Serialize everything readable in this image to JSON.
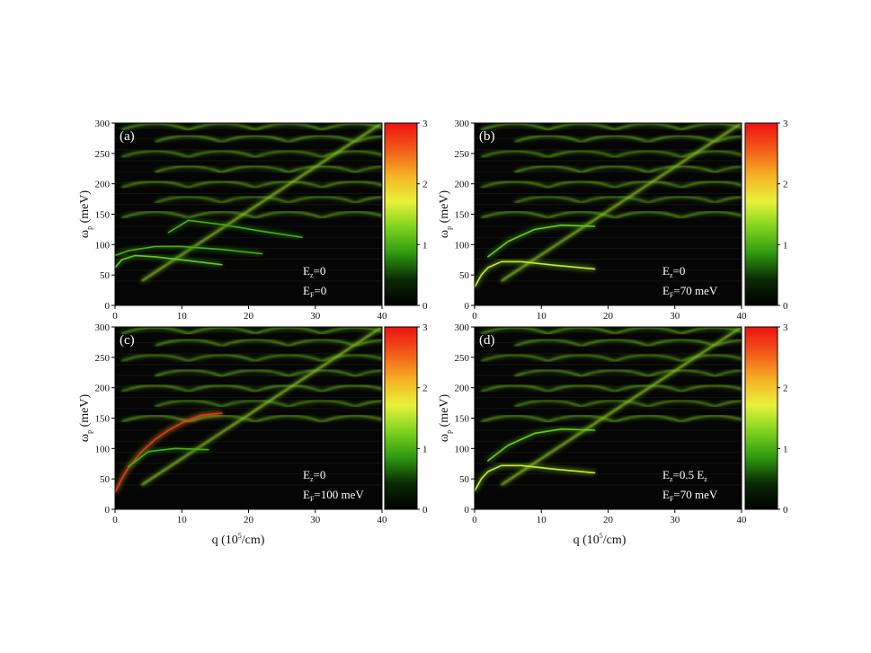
{
  "figure": {
    "x_axis_label": {
      "prefix": "q (10",
      "sup": "5",
      "suffix": "/cm)"
    },
    "y_axis_label": {
      "main": "ω",
      "sub": "p",
      "suffix": " (meV)"
    }
  },
  "colors": {
    "background": "#050505",
    "colormap": [
      "#000000",
      "#0a2a05",
      "#2f9a10",
      "#7fd31f",
      "#e9f23a",
      "#f6b024",
      "#f25a18",
      "#ee1111"
    ]
  },
  "chart_data": [
    {
      "type": "heatmap",
      "panel_label": "(a)",
      "xlim": [
        0,
        40
      ],
      "ylim": [
        0,
        300
      ],
      "x_ticks": [
        0,
        10,
        20,
        30,
        40
      ],
      "y_ticks": [
        0,
        50,
        100,
        150,
        200,
        250,
        300
      ],
      "colorbar": {
        "range": [
          0,
          3
        ],
        "ticks": [
          0,
          1,
          2,
          3
        ]
      },
      "annotation": [
        {
          "var": "E",
          "sub": "z",
          "rest": "=0"
        },
        {
          "var": "E",
          "sub": "F",
          "rest": "=0"
        }
      ],
      "dispersion_branches": [
        {
          "points": [
            [
              0,
              62
            ],
            [
              1,
              75
            ],
            [
              3,
              82
            ],
            [
              6,
              80
            ],
            [
              10,
              75
            ],
            [
              16,
              67
            ]
          ],
          "intensity": 1.2
        },
        {
          "points": [
            [
              0,
              82
            ],
            [
              2,
              90
            ],
            [
              6,
              97
            ],
            [
              10,
              97
            ],
            [
              16,
              92
            ],
            [
              22,
              85
            ]
          ],
          "intensity": 1.0
        },
        {
          "points": [
            [
              8,
              120
            ],
            [
              11,
              140
            ],
            [
              16,
              133
            ],
            [
              22,
              122
            ],
            [
              28,
              112
            ]
          ],
          "intensity": 1.0
        },
        {
          "points": [
            [
              0,
              300
            ],
            [
              40,
              300
            ]
          ],
          "intensity": 0.6
        }
      ]
    },
    {
      "type": "heatmap",
      "panel_label": "(b)",
      "xlim": [
        0,
        40
      ],
      "ylim": [
        0,
        300
      ],
      "x_ticks": [
        0,
        10,
        20,
        30,
        40
      ],
      "y_ticks": [
        0,
        50,
        100,
        150,
        200,
        250,
        300
      ],
      "colorbar": {
        "range": [
          0,
          3
        ],
        "ticks": [
          0,
          1,
          2,
          3
        ]
      },
      "annotation": [
        {
          "var": "E",
          "sub": "z",
          "rest": "=0"
        },
        {
          "var": "E",
          "sub": "F",
          "rest": "=70 meV"
        }
      ],
      "dispersion_branches": [
        {
          "points": [
            [
              0,
              30
            ],
            [
              1,
              50
            ],
            [
              2,
              62
            ],
            [
              4,
              72
            ],
            [
              7,
              72
            ],
            [
              12,
              66
            ],
            [
              18,
              60
            ]
          ],
          "intensity": 1.6
        },
        {
          "points": [
            [
              2,
              80
            ],
            [
              5,
              105
            ],
            [
              9,
              125
            ],
            [
              13,
              132
            ],
            [
              18,
              130
            ]
          ],
          "intensity": 1.2
        },
        {
          "points": [
            [
              0,
              300
            ],
            [
              40,
              300
            ]
          ],
          "intensity": 0.6
        }
      ]
    },
    {
      "type": "heatmap",
      "panel_label": "(c)",
      "xlim": [
        0,
        40
      ],
      "ylim": [
        0,
        300
      ],
      "x_ticks": [
        0,
        10,
        20,
        30,
        40
      ],
      "y_ticks": [
        0,
        50,
        100,
        150,
        200,
        250,
        300
      ],
      "colorbar": {
        "range": [
          0,
          3
        ],
        "ticks": [
          0,
          1,
          2,
          3
        ]
      },
      "annotation": [
        {
          "var": "E",
          "sub": "z",
          "rest": "=0"
        },
        {
          "var": "E",
          "sub": "F",
          "rest": "=100 meV"
        }
      ],
      "dispersion_branches": [
        {
          "points": [
            [
              0,
              28
            ],
            [
              1,
              50
            ],
            [
              2,
              68
            ],
            [
              4,
              95
            ],
            [
              6,
              115
            ],
            [
              8,
              130
            ],
            [
              10,
              142
            ],
            [
              13,
              155
            ],
            [
              16,
              158
            ]
          ],
          "intensity": 2.8
        },
        {
          "points": [
            [
              2,
              70
            ],
            [
              5,
              95
            ],
            [
              9,
              100
            ],
            [
              14,
              98
            ]
          ],
          "intensity": 1.0
        },
        {
          "points": [
            [
              0,
              300
            ],
            [
              40,
              300
            ]
          ],
          "intensity": 0.6
        }
      ]
    },
    {
      "type": "heatmap",
      "panel_label": "(d)",
      "xlim": [
        0,
        40
      ],
      "ylim": [
        0,
        300
      ],
      "x_ticks": [
        0,
        10,
        20,
        30,
        40
      ],
      "y_ticks": [
        0,
        50,
        100,
        150,
        200,
        250,
        300
      ],
      "colorbar": {
        "range": [
          0,
          3
        ],
        "ticks": [
          0,
          1,
          2,
          3
        ]
      },
      "annotation": [
        {
          "var": "E",
          "sub": "z",
          "rest": "=0.5 E",
          "sub2": "z"
        },
        {
          "var": "E",
          "sub": "F",
          "rest": "=70 meV"
        }
      ],
      "dispersion_branches": [
        {
          "points": [
            [
              0,
              30
            ],
            [
              1,
              50
            ],
            [
              2,
              62
            ],
            [
              4,
              72
            ],
            [
              7,
              72
            ],
            [
              12,
              66
            ],
            [
              18,
              60
            ]
          ],
          "intensity": 1.6
        },
        {
          "points": [
            [
              2,
              80
            ],
            [
              5,
              105
            ],
            [
              9,
              125
            ],
            [
              13,
              132
            ],
            [
              18,
              130
            ]
          ],
          "intensity": 1.2
        },
        {
          "points": [
            [
              0,
              300
            ],
            [
              40,
              300
            ]
          ],
          "intensity": 0.6
        }
      ]
    }
  ]
}
